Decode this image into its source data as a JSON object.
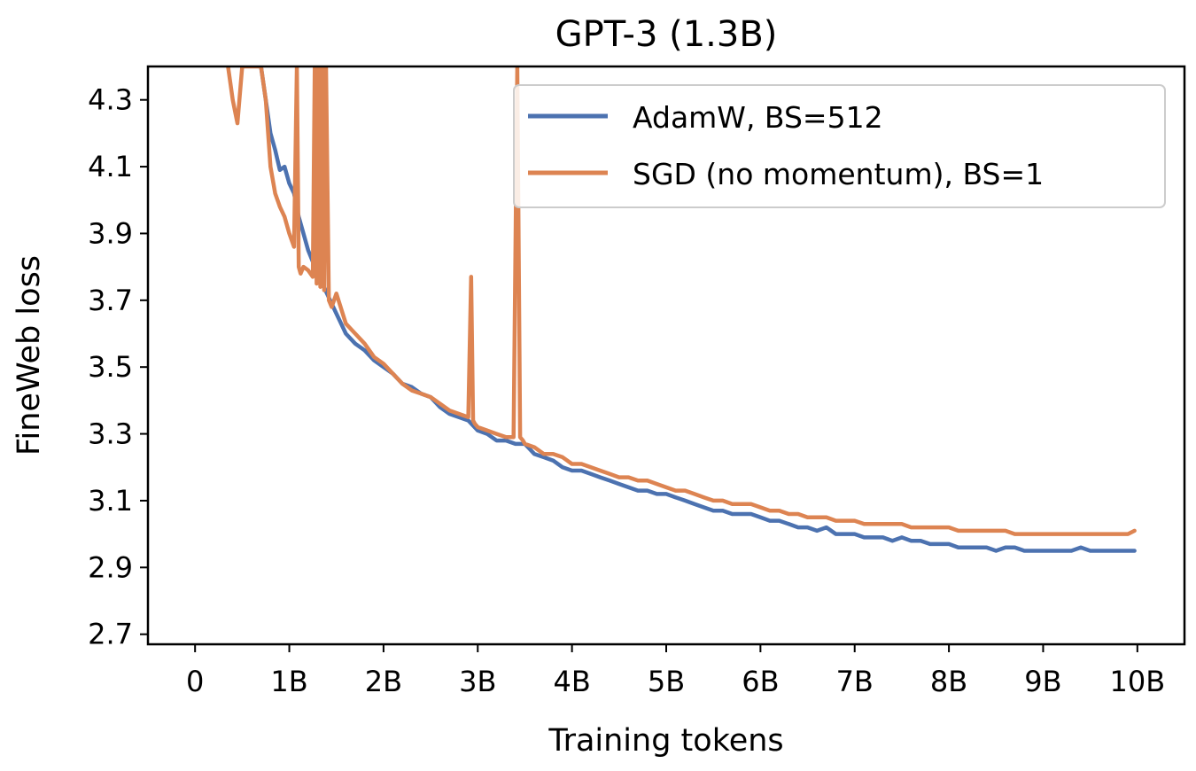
{
  "chart_data": {
    "type": "line",
    "title": "GPT-3 (1.3B)",
    "xlabel": "Training tokens",
    "ylabel": "FineWeb loss",
    "xlim": [
      -0.5,
      10.5
    ],
    "ylim": [
      2.67,
      4.4
    ],
    "x_ticks": [
      0,
      1,
      2,
      3,
      4,
      5,
      6,
      7,
      8,
      9,
      10
    ],
    "x_tick_labels": [
      "0",
      "1B",
      "2B",
      "3B",
      "4B",
      "5B",
      "6B",
      "7B",
      "8B",
      "9B",
      "10B"
    ],
    "y_ticks": [
      2.7,
      2.9,
      3.1,
      3.3,
      3.5,
      3.7,
      3.9,
      4.1,
      4.3
    ],
    "y_tick_labels": [
      "2.7",
      "2.9",
      "3.1",
      "3.3",
      "3.5",
      "3.7",
      "3.9",
      "4.1",
      "4.3"
    ],
    "grid": false,
    "legend_position": "top-right",
    "series": [
      {
        "name": "AdamW, BS=512",
        "color": "#4c72b0",
        "x": [
          0.7,
          0.75,
          0.8,
          0.85,
          0.9,
          0.95,
          1.0,
          1.05,
          1.1,
          1.15,
          1.2,
          1.3,
          1.4,
          1.5,
          1.6,
          1.7,
          1.8,
          1.9,
          2.0,
          2.1,
          2.2,
          2.3,
          2.4,
          2.5,
          2.6,
          2.7,
          2.8,
          2.9,
          3.0,
          3.1,
          3.2,
          3.3,
          3.4,
          3.5,
          3.6,
          3.7,
          3.8,
          3.9,
          4.0,
          4.1,
          4.2,
          4.3,
          4.4,
          4.5,
          4.6,
          4.7,
          4.8,
          4.9,
          5.0,
          5.1,
          5.2,
          5.3,
          5.4,
          5.5,
          5.6,
          5.7,
          5.8,
          5.9,
          6.0,
          6.1,
          6.2,
          6.3,
          6.4,
          6.5,
          6.6,
          6.7,
          6.8,
          6.9,
          7.0,
          7.1,
          7.2,
          7.3,
          7.4,
          7.5,
          7.6,
          7.7,
          7.8,
          7.9,
          8.0,
          8.1,
          8.2,
          8.3,
          8.4,
          8.5,
          8.6,
          8.7,
          8.8,
          8.9,
          9.0,
          9.1,
          9.2,
          9.3,
          9.4,
          9.5,
          9.6,
          9.7,
          9.8,
          9.9,
          9.97
        ],
        "y": [
          4.4,
          4.3,
          4.2,
          4.15,
          4.09,
          4.1,
          4.05,
          4.02,
          3.95,
          3.9,
          3.85,
          3.78,
          3.72,
          3.66,
          3.6,
          3.57,
          3.55,
          3.52,
          3.5,
          3.48,
          3.45,
          3.44,
          3.42,
          3.41,
          3.38,
          3.36,
          3.35,
          3.34,
          3.31,
          3.3,
          3.28,
          3.28,
          3.27,
          3.27,
          3.24,
          3.23,
          3.22,
          3.2,
          3.19,
          3.19,
          3.18,
          3.17,
          3.16,
          3.15,
          3.14,
          3.13,
          3.13,
          3.12,
          3.12,
          3.11,
          3.1,
          3.09,
          3.08,
          3.07,
          3.07,
          3.06,
          3.06,
          3.06,
          3.05,
          3.04,
          3.04,
          3.03,
          3.02,
          3.02,
          3.01,
          3.02,
          3.0,
          3.0,
          3.0,
          2.99,
          2.99,
          2.99,
          2.98,
          2.99,
          2.98,
          2.98,
          2.97,
          2.97,
          2.97,
          2.96,
          2.96,
          2.96,
          2.96,
          2.95,
          2.96,
          2.96,
          2.95,
          2.95,
          2.95,
          2.95,
          2.95,
          2.95,
          2.96,
          2.95,
          2.95,
          2.95,
          2.95,
          2.95,
          2.95
        ]
      },
      {
        "name": "SGD (no momentum), BS=1",
        "color": "#dd8452",
        "x": [
          0.35,
          0.4,
          0.45,
          0.5,
          0.55,
          0.6,
          0.65,
          0.7,
          0.75,
          0.8,
          0.85,
          0.9,
          0.95,
          1.0,
          1.05,
          1.08,
          1.1,
          1.12,
          1.15,
          1.2,
          1.25,
          1.27,
          1.29,
          1.31,
          1.33,
          1.35,
          1.37,
          1.39,
          1.42,
          1.45,
          1.5,
          1.6,
          1.7,
          1.8,
          1.9,
          2.0,
          2.1,
          2.2,
          2.3,
          2.4,
          2.5,
          2.6,
          2.7,
          2.8,
          2.9,
          2.93,
          2.95,
          2.97,
          3.0,
          3.1,
          3.2,
          3.3,
          3.38,
          3.42,
          3.45,
          3.48,
          3.5,
          3.6,
          3.7,
          3.8,
          3.9,
          4.0,
          4.1,
          4.2,
          4.3,
          4.4,
          4.5,
          4.6,
          4.7,
          4.8,
          4.9,
          5.0,
          5.1,
          5.2,
          5.3,
          5.4,
          5.5,
          5.6,
          5.7,
          5.8,
          5.9,
          6.0,
          6.1,
          6.2,
          6.3,
          6.4,
          6.5,
          6.6,
          6.7,
          6.8,
          6.9,
          7.0,
          7.1,
          7.2,
          7.3,
          7.4,
          7.5,
          7.6,
          7.7,
          7.8,
          7.9,
          8.0,
          8.1,
          8.2,
          8.3,
          8.4,
          8.5,
          8.6,
          8.7,
          8.8,
          8.9,
          9.0,
          9.1,
          9.2,
          9.3,
          9.4,
          9.5,
          9.6,
          9.7,
          9.8,
          9.9,
          9.97
        ],
        "y": [
          4.4,
          4.3,
          4.23,
          4.4,
          4.4,
          4.4,
          4.4,
          4.4,
          4.3,
          4.1,
          4.02,
          3.98,
          3.95,
          3.9,
          3.86,
          4.4,
          3.8,
          3.78,
          3.8,
          3.79,
          3.77,
          4.4,
          3.75,
          4.4,
          3.74,
          4.4,
          3.73,
          4.4,
          3.7,
          3.68,
          3.72,
          3.63,
          3.6,
          3.57,
          3.53,
          3.51,
          3.48,
          3.45,
          3.43,
          3.42,
          3.41,
          3.39,
          3.37,
          3.36,
          3.35,
          3.77,
          3.34,
          3.33,
          3.32,
          3.31,
          3.3,
          3.29,
          3.29,
          4.4,
          3.29,
          3.28,
          3.27,
          3.26,
          3.24,
          3.24,
          3.23,
          3.21,
          3.21,
          3.2,
          3.19,
          3.18,
          3.17,
          3.17,
          3.16,
          3.16,
          3.15,
          3.14,
          3.13,
          3.13,
          3.12,
          3.11,
          3.1,
          3.1,
          3.09,
          3.09,
          3.09,
          3.08,
          3.07,
          3.07,
          3.06,
          3.06,
          3.05,
          3.05,
          3.05,
          3.04,
          3.04,
          3.04,
          3.03,
          3.03,
          3.03,
          3.03,
          3.03,
          3.02,
          3.02,
          3.02,
          3.02,
          3.02,
          3.01,
          3.01,
          3.01,
          3.01,
          3.01,
          3.01,
          3.0,
          3.0,
          3.0,
          3.0,
          3.0,
          3.0,
          3.0,
          3.0,
          3.0,
          3.0,
          3.0,
          3.0,
          3.0,
          3.01
        ]
      }
    ]
  }
}
